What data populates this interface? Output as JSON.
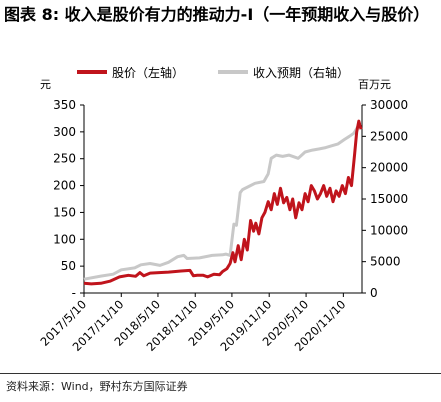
{
  "chart_data": {
    "type": "line",
    "title": "图表 8: 收入是股价有力的推动力-I（一年预期收入与股价）",
    "left_unit": "元",
    "right_unit": "百万元",
    "left_axis": {
      "ylim": [
        0,
        350
      ],
      "ticks": [
        "-",
        "50",
        "100",
        "150",
        "200",
        "250",
        "300",
        "350"
      ]
    },
    "right_axis": {
      "ylim": [
        0,
        30000
      ],
      "ticks": [
        "0",
        "5000",
        "10000",
        "15000",
        "20000",
        "25000",
        "30000"
      ]
    },
    "x_tick_labels": [
      "2017/5/10",
      "2017/11/10",
      "2018/5/10",
      "2018/11/10",
      "2019/5/10",
      "2019/11/10",
      "2020/5/10",
      "2020/11/10"
    ],
    "series": [
      {
        "name": "股价（左轴）",
        "axis": "left",
        "color": "#c0141c",
        "points": [
          [
            "2017-05-10",
            18
          ],
          [
            "2017-06-15",
            17
          ],
          [
            "2017-08-01",
            18
          ],
          [
            "2017-09-15",
            22
          ],
          [
            "2017-11-01",
            30
          ],
          [
            "2017-12-15",
            33
          ],
          [
            "2018-01-20",
            31
          ],
          [
            "2018-02-10",
            38
          ],
          [
            "2018-03-01",
            32
          ],
          [
            "2018-04-01",
            37
          ],
          [
            "2018-05-15",
            38
          ],
          [
            "2018-07-01",
            39
          ],
          [
            "2018-09-01",
            41
          ],
          [
            "2018-10-15",
            42
          ],
          [
            "2018-11-01",
            32
          ],
          [
            "2018-11-20",
            33
          ],
          [
            "2018-12-20",
            33
          ],
          [
            "2019-01-10",
            30
          ],
          [
            "2019-02-10",
            35
          ],
          [
            "2019-03-10",
            34
          ],
          [
            "2019-03-25",
            40
          ],
          [
            "2019-04-15",
            45
          ],
          [
            "2019-05-01",
            55
          ],
          [
            "2019-05-15",
            75
          ],
          [
            "2019-05-25",
            58
          ],
          [
            "2019-06-10",
            88
          ],
          [
            "2019-06-25",
            62
          ],
          [
            "2019-07-10",
            100
          ],
          [
            "2019-07-25",
            80
          ],
          [
            "2019-08-10",
            135
          ],
          [
            "2019-08-25",
            115
          ],
          [
            "2019-09-05",
            130
          ],
          [
            "2019-09-20",
            110
          ],
          [
            "2019-10-05",
            140
          ],
          [
            "2019-10-20",
            150
          ],
          [
            "2019-11-05",
            170
          ],
          [
            "2019-11-20",
            155
          ],
          [
            "2019-12-05",
            185
          ],
          [
            "2019-12-20",
            165
          ],
          [
            "2020-01-05",
            195
          ],
          [
            "2020-01-20",
            168
          ],
          [
            "2020-02-05",
            178
          ],
          [
            "2020-02-20",
            155
          ],
          [
            "2020-03-05",
            175
          ],
          [
            "2020-03-20",
            140
          ],
          [
            "2020-04-05",
            168
          ],
          [
            "2020-04-20",
            155
          ],
          [
            "2020-05-05",
            185
          ],
          [
            "2020-05-20",
            170
          ],
          [
            "2020-06-05",
            200
          ],
          [
            "2020-06-20",
            190
          ],
          [
            "2020-07-05",
            175
          ],
          [
            "2020-07-20",
            185
          ],
          [
            "2020-08-05",
            200
          ],
          [
            "2020-08-20",
            180
          ],
          [
            "2020-09-05",
            195
          ],
          [
            "2020-09-20",
            170
          ],
          [
            "2020-10-05",
            190
          ],
          [
            "2020-10-20",
            180
          ],
          [
            "2020-11-05",
            200
          ],
          [
            "2020-11-20",
            185
          ],
          [
            "2020-12-05",
            215
          ],
          [
            "2020-12-20",
            200
          ],
          [
            "2021-01-05",
            260
          ],
          [
            "2021-01-15",
            300
          ],
          [
            "2021-01-25",
            320
          ],
          [
            "2021-02-05",
            305
          ]
        ]
      },
      {
        "name": "收入预期（右轴）",
        "axis": "right",
        "color": "#c8c8c8",
        "points": [
          [
            "2017-05-10",
            2200
          ],
          [
            "2017-08-01",
            2700
          ],
          [
            "2017-10-01",
            3000
          ],
          [
            "2017-11-10",
            3700
          ],
          [
            "2018-01-15",
            4000
          ],
          [
            "2018-02-15",
            4500
          ],
          [
            "2018-04-01",
            4700
          ],
          [
            "2018-05-20",
            4400
          ],
          [
            "2018-07-01",
            4900
          ],
          [
            "2018-08-15",
            5800
          ],
          [
            "2018-09-15",
            6000
          ],
          [
            "2018-10-01",
            5500
          ],
          [
            "2018-12-01",
            5600
          ],
          [
            "2019-02-01",
            6000
          ],
          [
            "2019-03-25",
            6100
          ],
          [
            "2019-04-10",
            6200
          ],
          [
            "2019-05-01",
            6000
          ],
          [
            "2019-05-20",
            11000
          ],
          [
            "2019-06-01",
            10800
          ],
          [
            "2019-06-20",
            16000
          ],
          [
            "2019-07-01",
            16500
          ],
          [
            "2019-08-01",
            17000
          ],
          [
            "2019-09-01",
            17500
          ],
          [
            "2019-10-15",
            17800
          ],
          [
            "2019-11-05",
            19000
          ],
          [
            "2019-11-20",
            21500
          ],
          [
            "2019-12-15",
            22000
          ],
          [
            "2020-01-15",
            21800
          ],
          [
            "2020-02-15",
            22000
          ],
          [
            "2020-04-01",
            21500
          ],
          [
            "2020-05-05",
            22500
          ],
          [
            "2020-06-10",
            22800
          ],
          [
            "2020-07-15",
            23000
          ],
          [
            "2020-08-15",
            23200
          ],
          [
            "2020-09-15",
            23500
          ],
          [
            "2020-10-15",
            23800
          ],
          [
            "2020-11-15",
            24500
          ],
          [
            "2020-12-10",
            25000
          ],
          [
            "2021-01-01",
            25500
          ],
          [
            "2021-01-20",
            26500
          ],
          [
            "2021-02-05",
            27000
          ]
        ]
      }
    ],
    "legend_position": "top",
    "grid": false
  },
  "source": "资料来源：Wind，野村东方国际证券"
}
